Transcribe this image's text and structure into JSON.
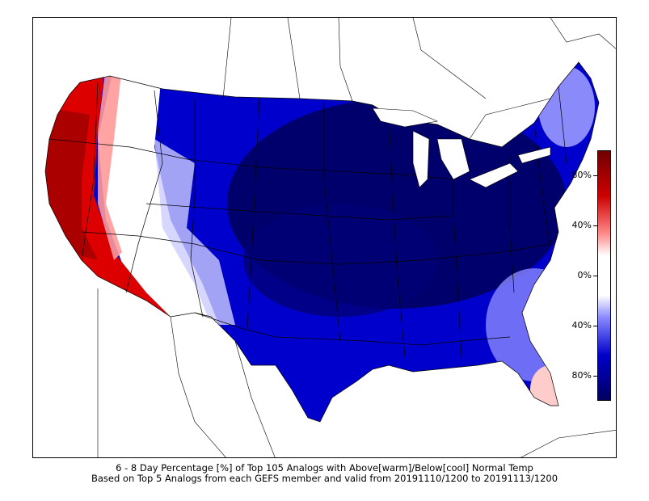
{
  "map": {
    "region": "Contiguous United States",
    "field": "percentage",
    "warm_color": "#cc0000",
    "cool_color": "#0000cc",
    "neutral_color": "#ffffff"
  },
  "colorbar": {
    "colors": [
      "#700000",
      "#cc0000",
      "#ff6666",
      "#ffffff",
      "#6666ff",
      "#0000cc",
      "#000060"
    ],
    "ticks": [
      {
        "label": "80%",
        "value": 80
      },
      {
        "label": "40%",
        "value": 40
      },
      {
        "label": "0%",
        "value": 0
      },
      {
        "label": "40%",
        "value": -40
      },
      {
        "label": "80%",
        "value": -80
      }
    ],
    "range": [
      -100,
      100
    ]
  },
  "caption": {
    "line1": "6 - 8 Day Percentage [%] of Top 105 Analogs with Above[warm]/Below[cool] Normal Temp",
    "line2": "Based on Top 5 Analogs from each GEFS member and valid from 20191110/1200 to 20191113/1200"
  }
}
